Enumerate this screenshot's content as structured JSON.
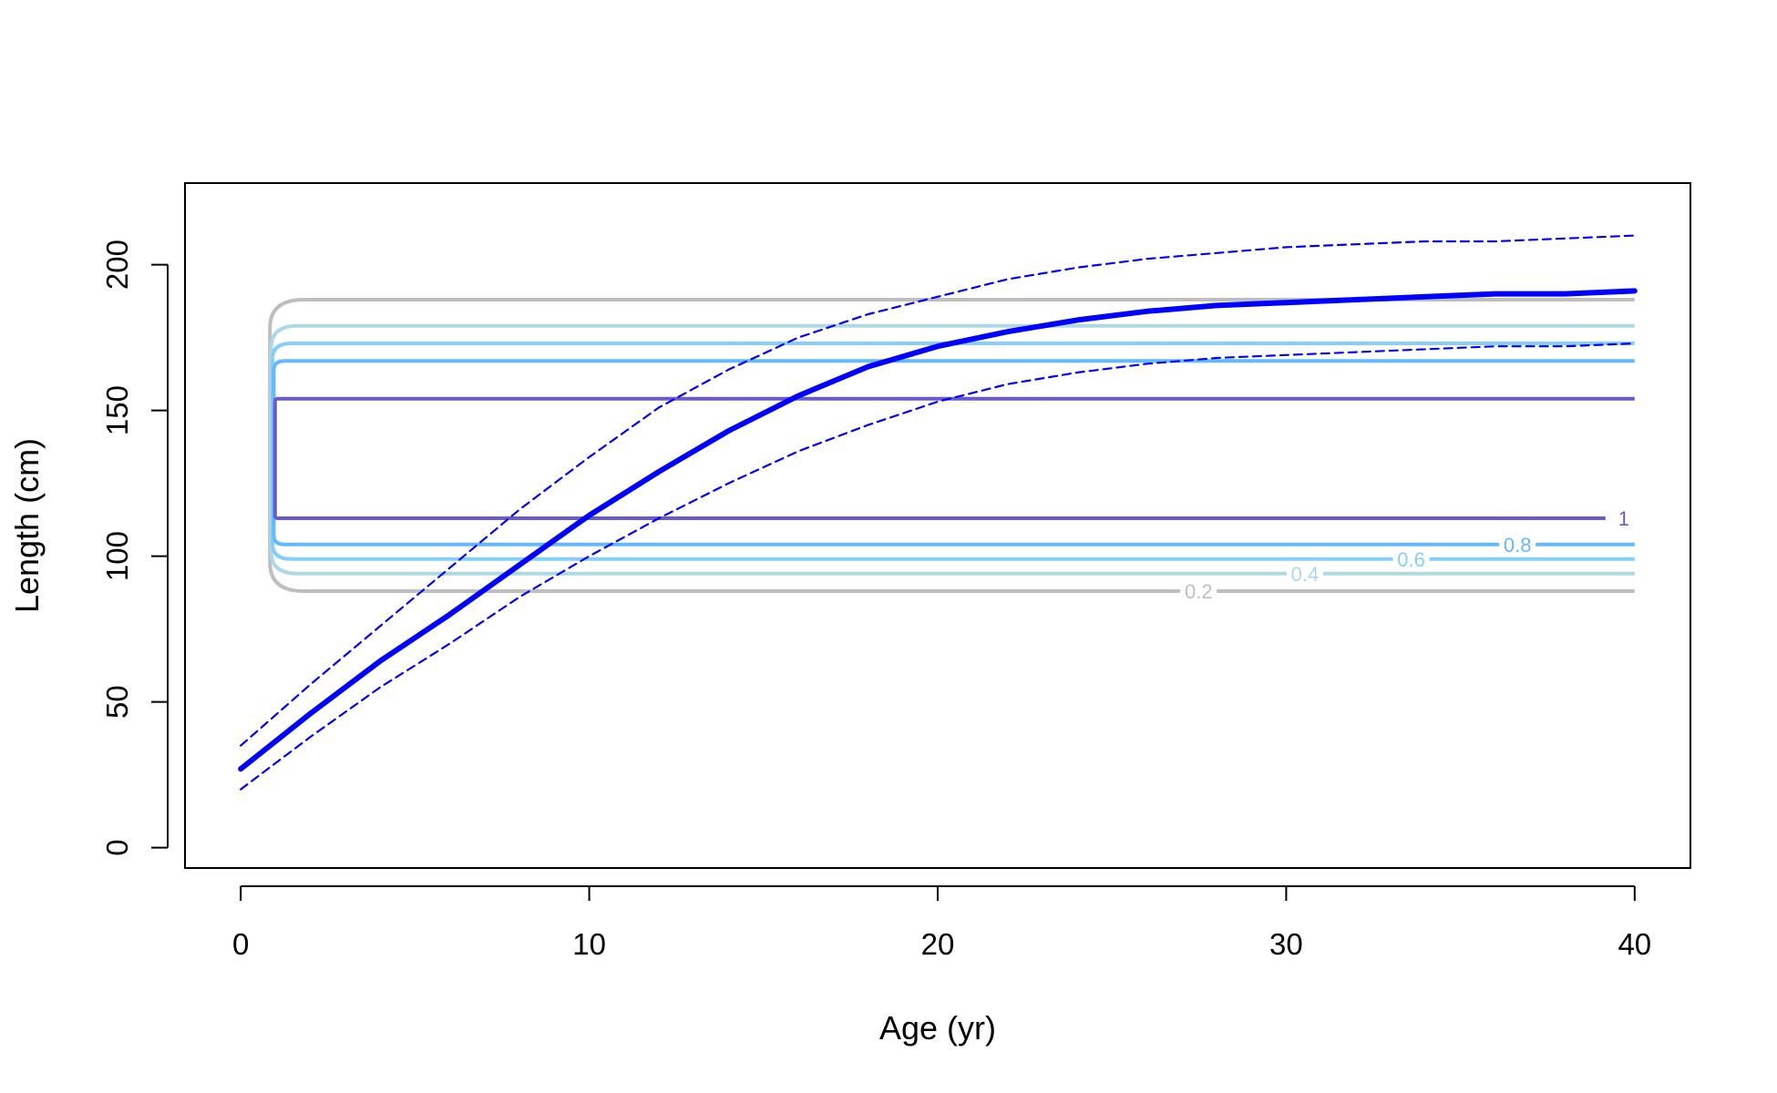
{
  "chart_data": {
    "type": "line",
    "title": "",
    "xlabel": "Age (yr)",
    "ylabel": "Length (cm)",
    "xlim": [
      -1.6,
      41.6
    ],
    "ylim": [
      -7,
      228
    ],
    "x_ticks": [
      0,
      10,
      20,
      30,
      40
    ],
    "y_ticks": [
      0,
      50,
      100,
      150,
      200
    ],
    "grid": false,
    "legend": "none",
    "series": [
      {
        "style": "solid",
        "color": "#0000FF",
        "x": [
          0,
          2,
          4,
          6,
          8,
          10,
          12,
          14,
          16,
          18,
          20,
          22,
          24,
          26,
          28,
          30,
          32,
          34,
          36,
          38,
          40
        ],
        "y": [
          27,
          46,
          64,
          80,
          97,
          114,
          129,
          143,
          155,
          165,
          172,
          177,
          181,
          184,
          186,
          187,
          188,
          189,
          190,
          190,
          191
        ]
      },
      {
        "style": "dashed",
        "color": "#0000FF",
        "x": [
          0,
          2,
          4,
          6,
          8,
          10,
          12,
          14,
          16,
          18,
          20,
          22,
          24,
          26,
          28,
          30,
          32,
          34,
          36,
          38,
          40
        ],
        "y": [
          35,
          56,
          76,
          96,
          116,
          134,
          151,
          164,
          175,
          183,
          189,
          195,
          199,
          202,
          204,
          206,
          207,
          208,
          208,
          209,
          210
        ]
      },
      {
        "style": "dashed",
        "color": "#0000FF",
        "x": [
          0,
          2,
          4,
          6,
          8,
          10,
          12,
          14,
          16,
          18,
          20,
          22,
          24,
          26,
          28,
          30,
          32,
          34,
          36,
          38,
          40
        ],
        "y": [
          20,
          38,
          55,
          70,
          86,
          100,
          113,
          125,
          136,
          145,
          153,
          159,
          163,
          166,
          168,
          169,
          170,
          171,
          172,
          172,
          173
        ]
      }
    ],
    "contours": [
      {
        "level": "0.2",
        "color": "#BEBEBE",
        "x_start": 1,
        "x_end": 40,
        "y_low": 88,
        "y_high": 188
      },
      {
        "level": "0.4",
        "color": "#ADD8E6",
        "x_start": 1,
        "x_end": 40,
        "y_low": 94,
        "y_high": 179
      },
      {
        "level": "0.6",
        "color": "#87CEFA",
        "x_start": 1,
        "x_end": 40,
        "y_low": 99,
        "y_high": 173
      },
      {
        "level": "0.8",
        "color": "#63B8FF",
        "x_start": 1,
        "x_end": 40,
        "y_low": 104,
        "y_high": 167
      },
      {
        "level": "1",
        "color": "#6A5ACD",
        "x_start": 1,
        "x_end": 40,
        "y_low": 113,
        "y_high": 154
      }
    ]
  }
}
